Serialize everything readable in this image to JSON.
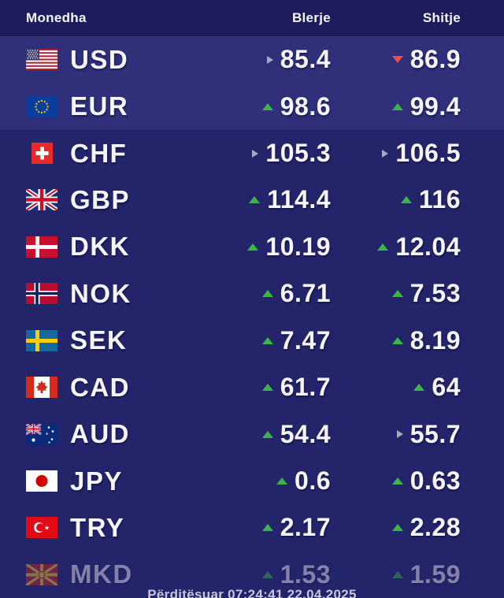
{
  "header": {
    "currency_label": "Monedha",
    "buy_label": "Blerje",
    "sell_label": "Shitje"
  },
  "footer": {
    "updated_text": "Përditësuar 07:24:41 22.04.2025"
  },
  "colors": {
    "header_bg": "#1d1d5e",
    "row_bg": "#24246b",
    "highlight_row_bg": "#2f2f7a",
    "trend_up": "#3bb54a",
    "trend_down": "#e8504f",
    "trend_neutral": "#a5a9c2",
    "text": "#f5f5fa"
  },
  "rows": [
    {
      "code": "USD",
      "flag": "usd-flag",
      "buy": {
        "value": "85.4",
        "trend": "neutral"
      },
      "sell": {
        "value": "86.9",
        "trend": "down"
      },
      "highlight": true,
      "faded": false
    },
    {
      "code": "EUR",
      "flag": "eur-flag",
      "buy": {
        "value": "98.6",
        "trend": "up"
      },
      "sell": {
        "value": "99.4",
        "trend": "up"
      },
      "highlight": true,
      "faded": false
    },
    {
      "code": "CHF",
      "flag": "chf-flag",
      "buy": {
        "value": "105.3",
        "trend": "neutral"
      },
      "sell": {
        "value": "106.5",
        "trend": "neutral"
      },
      "highlight": false,
      "faded": false
    },
    {
      "code": "GBP",
      "flag": "gbp-flag",
      "buy": {
        "value": "114.4",
        "trend": "up"
      },
      "sell": {
        "value": "116",
        "trend": "up"
      },
      "highlight": false,
      "faded": false
    },
    {
      "code": "DKK",
      "flag": "dkk-flag",
      "buy": {
        "value": "10.19",
        "trend": "up"
      },
      "sell": {
        "value": "12.04",
        "trend": "up"
      },
      "highlight": false,
      "faded": false
    },
    {
      "code": "NOK",
      "flag": "nok-flag",
      "buy": {
        "value": "6.71",
        "trend": "up"
      },
      "sell": {
        "value": "7.53",
        "trend": "up"
      },
      "highlight": false,
      "faded": false
    },
    {
      "code": "SEK",
      "flag": "sek-flag",
      "buy": {
        "value": "7.47",
        "trend": "up"
      },
      "sell": {
        "value": "8.19",
        "trend": "up"
      },
      "highlight": false,
      "faded": false
    },
    {
      "code": "CAD",
      "flag": "cad-flag",
      "buy": {
        "value": "61.7",
        "trend": "up"
      },
      "sell": {
        "value": "64",
        "trend": "up"
      },
      "highlight": false,
      "faded": false
    },
    {
      "code": "AUD",
      "flag": "aud-flag",
      "buy": {
        "value": "54.4",
        "trend": "up"
      },
      "sell": {
        "value": "55.7",
        "trend": "neutral"
      },
      "highlight": false,
      "faded": false
    },
    {
      "code": "JPY",
      "flag": "jpy-flag",
      "buy": {
        "value": "0.6",
        "trend": "up"
      },
      "sell": {
        "value": "0.63",
        "trend": "up"
      },
      "highlight": false,
      "faded": false
    },
    {
      "code": "TRY",
      "flag": "try-flag",
      "buy": {
        "value": "2.17",
        "trend": "up"
      },
      "sell": {
        "value": "2.28",
        "trend": "up"
      },
      "highlight": false,
      "faded": false
    },
    {
      "code": "MKD",
      "flag": "mkd-flag",
      "buy": {
        "value": "1.53",
        "trend": "up"
      },
      "sell": {
        "value": "1.59",
        "trend": "up"
      },
      "highlight": false,
      "faded": true
    }
  ]
}
